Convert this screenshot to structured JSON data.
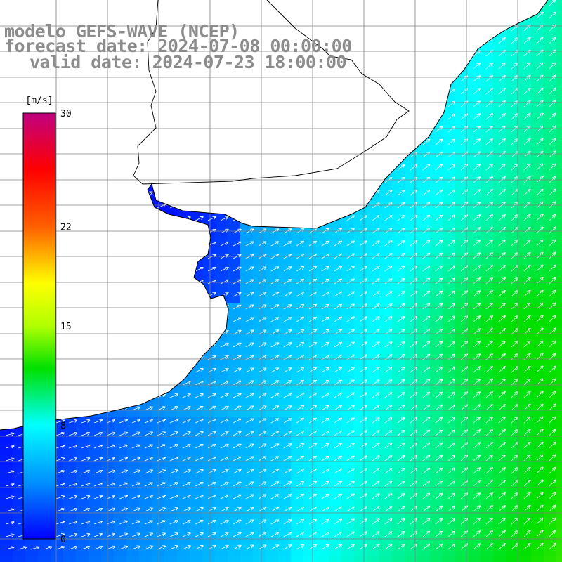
{
  "header": {
    "model": "modelo GEFS-WAVE (NCEP)",
    "forecast_date": "forecast date: 2024-07-08 00:00:00",
    "valid_date": "valid date: 2024-07-23 18:00:00"
  },
  "colorbar": {
    "unit": "[m/s]",
    "ticks": [
      {
        "value": 30,
        "label": "30"
      },
      {
        "value": 22,
        "label": "22"
      },
      {
        "value": 15,
        "label": "15"
      },
      {
        "value": 8,
        "label": "8"
      },
      {
        "value": 0,
        "label": "0"
      }
    ],
    "stops": [
      {
        "value": 0,
        "color": "#0000ff"
      },
      {
        "value": 4,
        "color": "#0090ff"
      },
      {
        "value": 8,
        "color": "#00ffff"
      },
      {
        "value": 12,
        "color": "#00e000"
      },
      {
        "value": 15,
        "color": "#b0ff00"
      },
      {
        "value": 18,
        "color": "#ffff00"
      },
      {
        "value": 22,
        "color": "#ff6000"
      },
      {
        "value": 26,
        "color": "#ff0000"
      },
      {
        "value": 30,
        "color": "#c00080"
      }
    ]
  },
  "map": {
    "land_color": "#ffffff",
    "grid_color": "#808080",
    "coast_color": "#000000"
  }
}
